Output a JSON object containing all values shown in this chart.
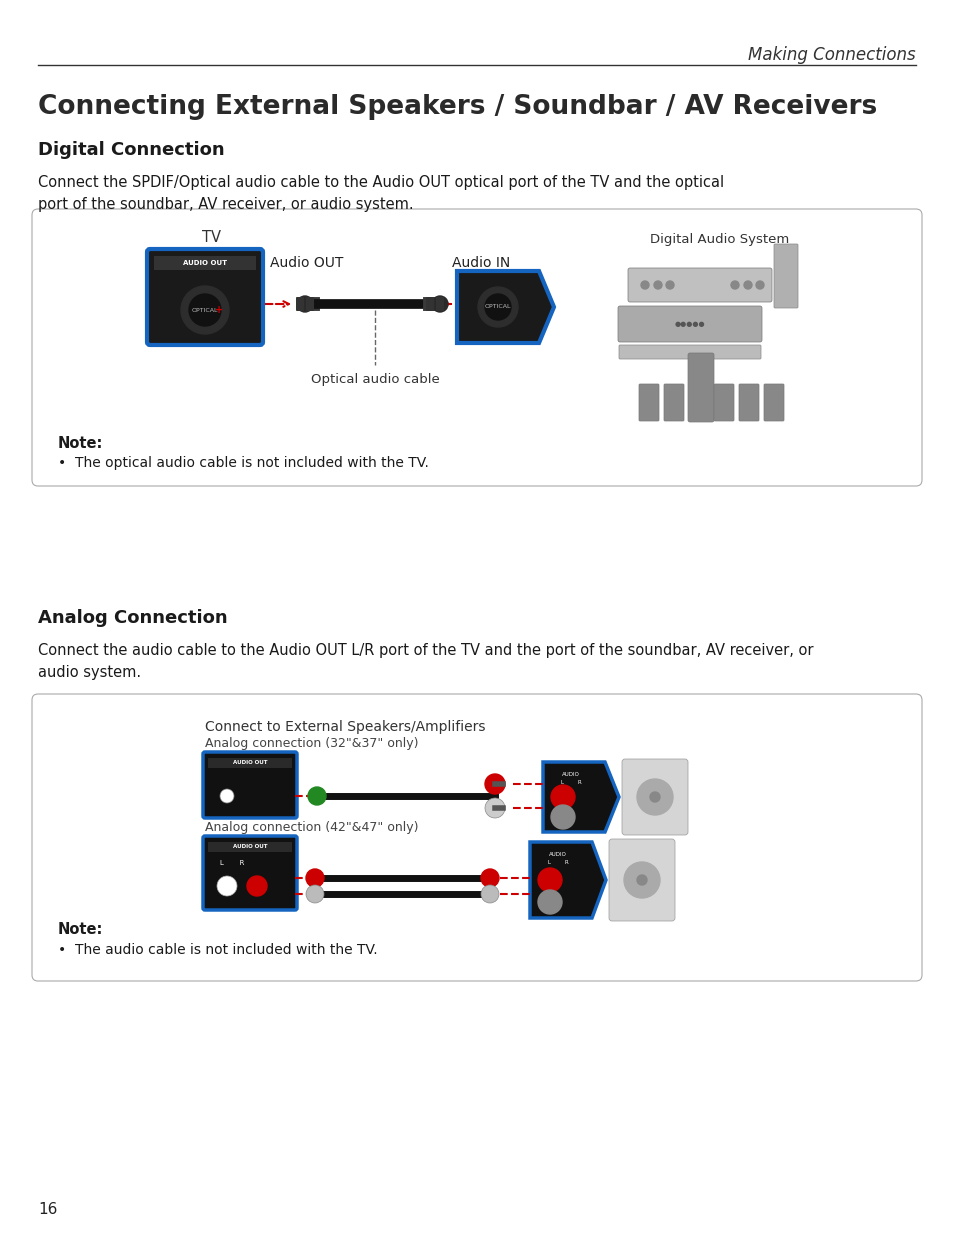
{
  "page_title": "Making Connections",
  "main_title": "Connecting External Speakers / Soundbar / AV Receivers",
  "digital_section": {
    "heading": "Digital Connection",
    "body": "Connect the SPDIF/Optical audio cable to the Audio OUT optical port of the TV and the optical\nport of the soundbar, AV receiver, or audio system.",
    "note_heading": "Note:",
    "note_body": "The optical audio cable is not included with the TV.",
    "label_tv": "TV",
    "label_audio_out": "AUDIO OUT",
    "label_optical": "OPTICAL",
    "label_audio_out_text": "Audio OUT",
    "label_audio_in": "Audio IN",
    "label_cable": "Optical audio cable",
    "label_digital_audio": "Digital Audio System"
  },
  "analog_section": {
    "heading": "Analog Connection",
    "body": "Connect the audio cable to the Audio OUT L/R port of the TV and the port of the soundbar, AV receiver, or\naudio system.",
    "note_heading": "Note:",
    "note_body": "The audio cable is not included with the TV.",
    "label_connect": "Connect to External Speakers/Amplifiers",
    "label_conn1": "Analog connection (32\"&37\" only)",
    "label_conn2": "Analog connection (42\"&47\" only)",
    "label_audio_out": "AUDIO OUT",
    "label_lr": "L    R"
  },
  "page_number": "16",
  "bg_color": "#ffffff",
  "blue_color": "#1565c0",
  "red_color": "#cc0000",
  "text_dark": "#1a1a1a",
  "text_gray": "#444444",
  "box_bg": "#111111",
  "box_border": "#cccccc"
}
